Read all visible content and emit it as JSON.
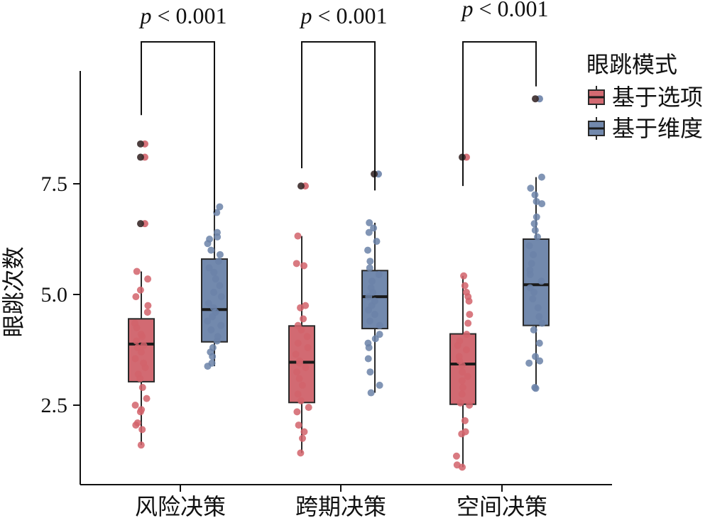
{
  "chart_data": {
    "type": "boxplot",
    "title": "",
    "xlabel": "",
    "ylabel": "眼跳次数",
    "ylim": [
      0.85,
      10.1
    ],
    "yticks": [
      2.5,
      5.0,
      7.5
    ],
    "ytick_labels": [
      "2.5",
      "5.0",
      "7.5"
    ],
    "categories": [
      "风险决策",
      "跨期决策",
      "空间决策"
    ],
    "legend": {
      "title": "眼跳模式",
      "position": "top-right",
      "entries": [
        "基于选项",
        "基于维度"
      ]
    },
    "series": [
      {
        "name": "基于选项",
        "color": "#d2636b",
        "box_fill": "#d26a72",
        "boxes": [
          {
            "category": "风险决策",
            "whisker_low": 1.6,
            "q1": 3.03,
            "median": 3.88,
            "q3": 4.45,
            "whisker_high": 5.52
          },
          {
            "category": "跨期决策",
            "whisker_low": 1.42,
            "q1": 2.56,
            "median": 3.47,
            "q3": 4.29,
            "whisker_high": 6.32
          },
          {
            "category": "空间决策",
            "whisker_low": 1.1,
            "q1": 2.52,
            "median": 3.43,
            "q3": 4.11,
            "whisker_high": 5.42
          }
        ],
        "outliers": [
          {
            "category": "风险决策",
            "values": [
              6.6,
              8.1,
              8.4
            ]
          },
          {
            "category": "跨期决策",
            "values": [
              7.45
            ]
          },
          {
            "category": "空间决策",
            "values": [
              8.1
            ]
          }
        ],
        "points": [
          {
            "category": "风险决策",
            "values": [
              1.6,
              1.95,
              2.05,
              2.1,
              2.35,
              2.4,
              2.5,
              2.65,
              2.9,
              3.1,
              3.2,
              3.35,
              3.45,
              3.55,
              3.7,
              3.8,
              3.85,
              3.95,
              4.05,
              4.1,
              4.25,
              4.35,
              4.6,
              4.75,
              4.95,
              5.1,
              5.35,
              5.52
            ]
          },
          {
            "category": "跨期决策",
            "values": [
              1.42,
              1.75,
              1.9,
              2.05,
              2.35,
              2.45,
              2.6,
              2.75,
              2.95,
              3.1,
              3.25,
              3.35,
              3.45,
              3.5,
              3.65,
              3.8,
              3.9,
              4.05,
              4.2,
              4.3,
              4.45,
              4.7,
              4.75,
              5.65,
              5.7,
              6.32
            ]
          },
          {
            "category": "空间决策",
            "values": [
              1.1,
              1.15,
              1.35,
              1.85,
              1.9,
              2.15,
              2.5,
              2.55,
              2.75,
              2.9,
              3.05,
              3.15,
              3.25,
              3.4,
              3.5,
              3.6,
              3.75,
              3.85,
              3.95,
              4.1,
              4.35,
              4.55,
              4.85,
              4.95,
              5.05,
              5.2,
              5.42
            ]
          }
        ]
      },
      {
        "name": "基于维度",
        "color": "#6b82a8",
        "box_fill": "#7289ad",
        "boxes": [
          {
            "category": "风险决策",
            "whisker_low": 3.38,
            "q1": 3.93,
            "median": 4.66,
            "q3": 5.8,
            "whisker_high": 6.98
          },
          {
            "category": "跨期决策",
            "whisker_low": 2.78,
            "q1": 4.23,
            "median": 4.95,
            "q3": 5.54,
            "whisker_high": 6.62
          },
          {
            "category": "空间决策",
            "whisker_low": 2.88,
            "q1": 4.3,
            "median": 5.22,
            "q3": 6.25,
            "whisker_high": 7.65
          }
        ],
        "outliers": [
          {
            "category": "风险决策",
            "values": []
          },
          {
            "category": "跨期决策",
            "values": [
              7.72
            ]
          },
          {
            "category": "空间决策",
            "values": [
              9.42
            ]
          }
        ],
        "points": [
          {
            "category": "风险决策",
            "values": [
              3.38,
              3.45,
              3.6,
              3.7,
              3.8,
              3.95,
              4.05,
              4.2,
              4.3,
              4.4,
              4.5,
              4.6,
              4.7,
              4.8,
              4.95,
              5.05,
              5.2,
              5.35,
              5.5,
              5.6,
              5.75,
              5.9,
              6.0,
              6.15,
              6.25,
              6.3,
              6.4,
              6.85,
              6.98
            ]
          },
          {
            "category": "跨期决策",
            "values": [
              2.78,
              2.95,
              3.25,
              3.55,
              3.8,
              3.9,
              4.0,
              4.1,
              4.3,
              4.4,
              4.55,
              4.65,
              4.75,
              4.85,
              4.95,
              5.05,
              5.15,
              5.3,
              5.45,
              5.6,
              5.75,
              6.0,
              6.2,
              6.4,
              6.5,
              6.62
            ]
          },
          {
            "category": "空间决策",
            "values": [
              2.88,
              2.9,
              3.45,
              3.5,
              3.6,
              3.9,
              4.2,
              4.35,
              4.5,
              4.7,
              4.9,
              5.05,
              5.15,
              5.3,
              5.45,
              5.55,
              5.7,
              5.9,
              6.1,
              6.3,
              6.45,
              6.6,
              6.75,
              7.05,
              7.1,
              7.25,
              7.4,
              7.65
            ]
          }
        ]
      }
    ],
    "significance": [
      {
        "category": "风险决策",
        "label_italic": "p",
        "label_rest": " < 0.001",
        "left_y": 9.05,
        "right_y": 6.85,
        "bracket_y": 10.02
      },
      {
        "category": "跨期决策",
        "label_italic": "p",
        "label_rest": " < 0.001",
        "left_y": 7.85,
        "right_y": 7.35,
        "bracket_y": 10.02
      },
      {
        "category": "空间决策",
        "label_italic": "p",
        "label_rest": " < 0.001",
        "left_y": 7.45,
        "right_y": 9.7,
        "bracket_y": 10.02
      }
    ]
  }
}
